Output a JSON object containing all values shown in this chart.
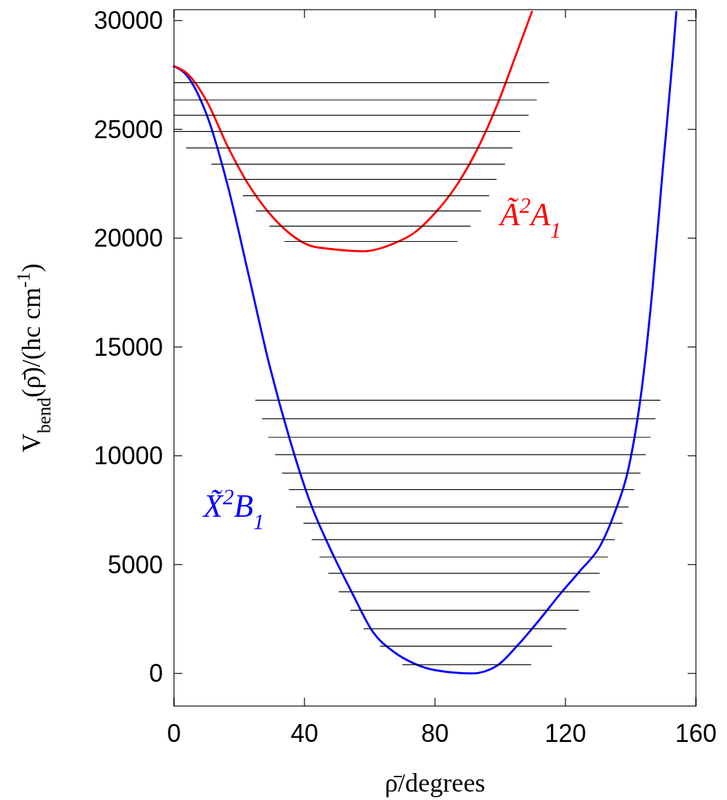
{
  "chart_data": {
    "type": "line",
    "xlabel": "ρ̄/degrees",
    "ylabel": "V$_{bend}$(ρ̄)/(hc cm$^{-1}$)",
    "xlim": [
      0,
      160
    ],
    "ylim": [
      -1500,
      30500
    ],
    "xticks": [
      0,
      40,
      80,
      120,
      160
    ],
    "yticks": [
      0,
      5000,
      10000,
      15000,
      20000,
      25000,
      30000
    ],
    "grid": false,
    "marker": "none",
    "line_style": "solid",
    "series": [
      {
        "name": "X̃$^{2}$B$_{1}$",
        "color": "#0000ff",
        "x": [
          0,
          3.8,
          10.2,
          16.5,
          22.9,
          29.2,
          35.6,
          41.9,
          48.3,
          54.6,
          61,
          67.3,
          73.7,
          80,
          91.4,
          99,
          105.4,
          111.7,
          118.1,
          124.4,
          130.8,
          135,
          139.3,
          143.5,
          146.7,
          149.8,
          153,
          154
        ],
        "values": [
          27900,
          27500,
          25600,
          22400,
          18300,
          14200,
          10700,
          7800,
          5600,
          3700,
          1900,
          1000,
          450,
          150,
          0,
          350,
          1300,
          2400,
          3600,
          4700,
          5900,
          7350,
          9400,
          13200,
          17700,
          23100,
          28500,
          30400
        ]
      },
      {
        "name": "Ã$^{2}$A$_{1}$",
        "color": "#ff0000",
        "x": [
          0,
          3.8,
          10.2,
          16.5,
          22.9,
          29.2,
          35.6,
          41.9,
          48.3,
          58.2,
          67.3,
          73.7,
          80,
          86.3,
          92.7,
          99,
          105.4,
          109.7
        ],
        "values": [
          27900,
          27600,
          26250,
          24200,
          22450,
          21150,
          20200,
          19650,
          19500,
          19400,
          19750,
          20250,
          21150,
          22350,
          24000,
          26100,
          28650,
          30400
        ]
      },
      {
        "color": "#000000",
        "x": [
          70.1,
          109.4
        ],
        "values": [
          400,
          400
        ]
      },
      {
        "color": "#000000",
        "x": [
          63.3,
          115.8
        ],
        "values": [
          1250,
          1250
        ]
      },
      {
        "color": "#000000",
        "x": [
          58.2,
          120.2
        ],
        "values": [
          2050,
          2050
        ]
      },
      {
        "color": "#000000",
        "x": [
          54.2,
          124.0
        ],
        "values": [
          2900,
          2900
        ]
      },
      {
        "color": "#000000",
        "x": [
          50.6,
          127.4
        ],
        "values": [
          3750,
          3750
        ]
      },
      {
        "color": "#000000",
        "x": [
          47.4,
          130.4
        ],
        "values": [
          4600,
          4600
        ]
      },
      {
        "color": "#000000",
        "x": [
          44.7,
          132.9
        ],
        "values": [
          5350,
          5350
        ]
      },
      {
        "color": "#000000",
        "x": [
          42.3,
          135.0
        ],
        "values": [
          6150,
          6150
        ]
      },
      {
        "color": "#000000",
        "x": [
          39.8,
          137.4
        ],
        "values": [
          6900,
          6900
        ]
      },
      {
        "color": "#000000",
        "x": [
          37.5,
          139.3
        ],
        "values": [
          7650,
          7650
        ]
      },
      {
        "color": "#000000",
        "x": [
          35.3,
          141.0
        ],
        "values": [
          8450,
          8450
        ]
      },
      {
        "color": "#000000",
        "x": [
          33.2,
          142.9
        ],
        "values": [
          9200,
          9200
        ]
      },
      {
        "color": "#000000",
        "x": [
          31.1,
          144.5
        ],
        "values": [
          10050,
          10050
        ]
      },
      {
        "color": "#000000",
        "x": [
          29.0,
          146.0
        ],
        "values": [
          10850,
          10850
        ]
      },
      {
        "color": "#000000",
        "x": [
          27.1,
          147.5
        ],
        "values": [
          11700,
          11700
        ]
      },
      {
        "color": "#000000",
        "x": [
          25.0,
          149.0
        ],
        "values": [
          12550,
          12550
        ]
      },
      {
        "color": "#000000",
        "x": [
          33.9,
          86.8
        ],
        "values": [
          19850,
          19850
        ]
      },
      {
        "color": "#000000",
        "x": [
          29.4,
          90.8
        ],
        "values": [
          20550,
          20550
        ]
      },
      {
        "color": "#000000",
        "x": [
          25.2,
          94.0
        ],
        "values": [
          21250,
          21250
        ]
      },
      {
        "color": "#000000",
        "x": [
          21.2,
          96.5
        ],
        "values": [
          21950,
          21950
        ]
      },
      {
        "color": "#000000",
        "x": [
          16.7,
          98.8
        ],
        "values": [
          22700,
          22700
        ]
      },
      {
        "color": "#000000",
        "x": [
          11.6,
          101.4
        ],
        "values": [
          23400,
          23400
        ]
      },
      {
        "color": "#000000",
        "x": [
          3.8,
          103.7
        ],
        "values": [
          24150,
          24150
        ]
      },
      {
        "color": "#000000",
        "x": [
          0,
          106.0
        ],
        "values": [
          24900,
          24900
        ]
      },
      {
        "color": "#000000",
        "x": [
          0,
          108.6
        ],
        "values": [
          25650,
          25650
        ]
      },
      {
        "color": "#000000",
        "x": [
          0,
          111.1
        ],
        "values": [
          26350,
          26350
        ]
      },
      {
        "color": "#000000",
        "x": [
          0,
          114.9
        ],
        "values": [
          27150,
          27150
        ]
      }
    ]
  }
}
